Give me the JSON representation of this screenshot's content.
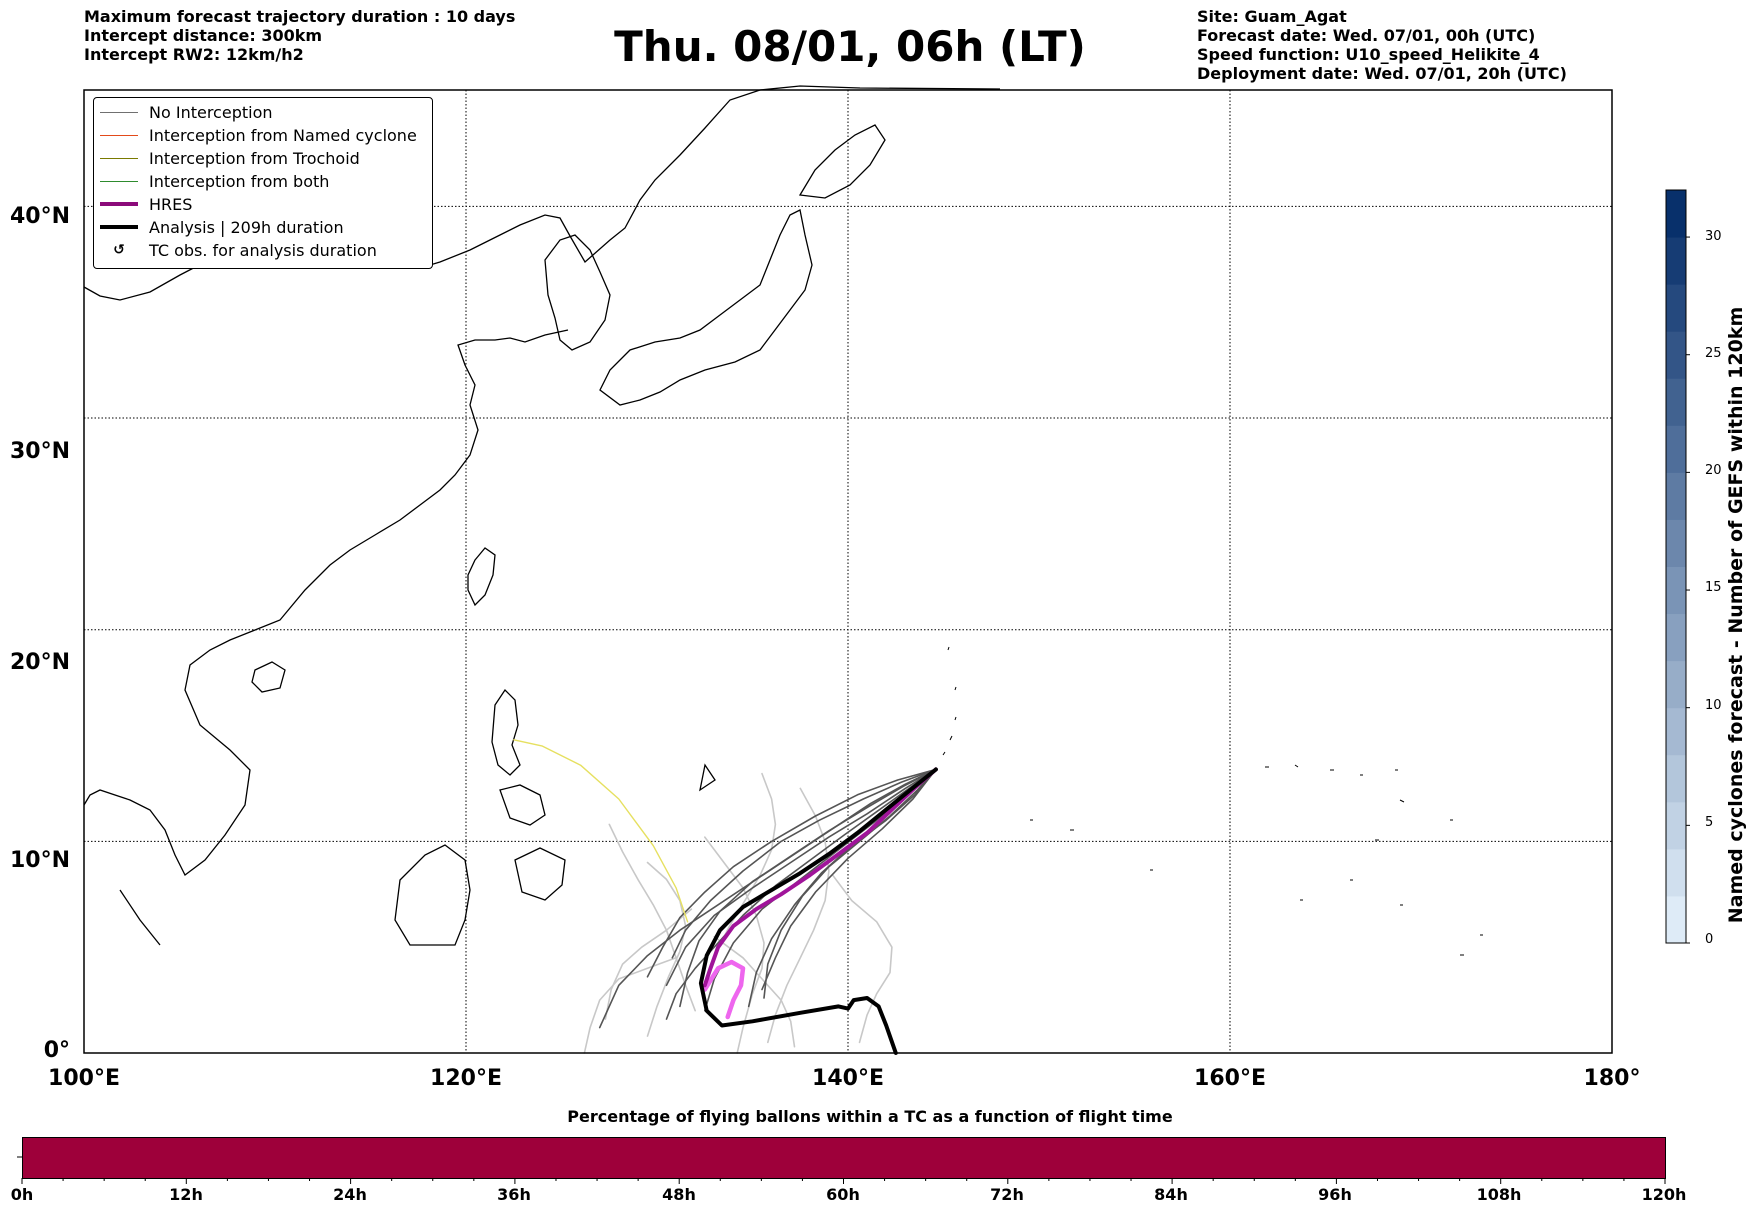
{
  "header": {
    "left_lines": [
      "Maximum forecast trajectory duration : 10 days",
      "Intercept distance: 300km",
      "Intercept RW2: 12km/h2"
    ],
    "title": "Thu. 08/01, 06h (LT)",
    "right_lines": [
      "Site: Guam_Agat",
      "Forecast date: Wed. 07/01, 00h (UTC)",
      "Speed function: U10_speed_Helikite_4",
      "Deployment date: Wed. 07/01, 20h (UTC)"
    ]
  },
  "map": {
    "lon_range": [
      100,
      180
    ],
    "lat_range": [
      0,
      45.5
    ],
    "grid": "dotted",
    "lon_ticks": [
      "100°E",
      "120°E",
      "140°E",
      "160°E",
      "180°"
    ],
    "lat_ticks": [
      "0°",
      "10°N",
      "20°N",
      "30°N",
      "40°N"
    ],
    "lon_tick_values": [
      100,
      120,
      140,
      160,
      180
    ],
    "lat_tick_values": [
      0,
      10,
      20,
      30,
      40
    ]
  },
  "legend": {
    "items": [
      {
        "label": "No Interception",
        "color": "#707070",
        "width": 1
      },
      {
        "label": "Interception from Named cyclone",
        "color": "#e34a1a",
        "width": 1
      },
      {
        "label": "Interception from Trochoid",
        "color": "#7a7a00",
        "width": 1
      },
      {
        "label": "Interception from both",
        "color": "#2e8b2e",
        "width": 1
      },
      {
        "label": "HRES",
        "color": "#8b0a7a",
        "width": 4
      },
      {
        "label": "Analysis | 209h duration",
        "color": "#000000",
        "width": 4
      },
      {
        "label": "TC obs. for analysis duration",
        "marker": "↺"
      }
    ]
  },
  "trajectories": {
    "launch_site": {
      "lon": 144.6,
      "lat": 13.4
    },
    "colors": {
      "gefs_dark": "#555555",
      "gefs_light": "#c8c8c8",
      "trochoid": "#e6e060",
      "hres": "#a0149a",
      "hres_tail": "#ee66ee",
      "analysis": "#000000"
    },
    "analysis": [
      [
        144.6,
        13.4
      ],
      [
        143.5,
        12.6
      ],
      [
        142,
        11.5
      ],
      [
        140.5,
        10.4
      ],
      [
        139,
        9.4
      ],
      [
        137.5,
        8.5
      ],
      [
        136,
        7.7
      ],
      [
        134.5,
        6.9
      ],
      [
        133.3,
        5.8
      ],
      [
        132.6,
        4.6
      ],
      [
        132.3,
        3.3
      ],
      [
        132.6,
        2.0
      ],
      [
        133.4,
        1.3
      ],
      [
        135,
        1.5
      ],
      [
        137.5,
        1.9
      ],
      [
        139.5,
        2.2
      ],
      [
        140,
        2.1
      ],
      [
        140.3,
        2.5
      ],
      [
        141,
        2.6
      ],
      [
        141.6,
        2.2
      ],
      [
        142,
        1.3
      ],
      [
        142.5,
        0
      ]
    ],
    "hres": [
      [
        144.6,
        13.4
      ],
      [
        143.7,
        12.7
      ],
      [
        142.3,
        11.5
      ],
      [
        141,
        10.4
      ],
      [
        139.5,
        9.4
      ],
      [
        138,
        8.4
      ],
      [
        136.5,
        7.5
      ],
      [
        135.2,
        6.8
      ],
      [
        134.0,
        6.0
      ],
      [
        133.2,
        5.0
      ],
      [
        132.8,
        4.0
      ],
      [
        132.5,
        3.2
      ]
    ],
    "hres_tail": [
      [
        132.5,
        3.0
      ],
      [
        133.2,
        4.0
      ],
      [
        133.9,
        4.3
      ],
      [
        134.5,
        4.0
      ],
      [
        134.4,
        3.2
      ],
      [
        134.0,
        2.5
      ],
      [
        133.7,
        1.7
      ]
    ],
    "trochoid": [
      [
        122.5,
        14.8
      ],
      [
        124,
        14.5
      ],
      [
        126,
        13.6
      ],
      [
        128,
        12.0
      ],
      [
        129.8,
        9.8
      ],
      [
        131,
        7.8
      ],
      [
        131.6,
        6.2
      ]
    ],
    "gefs_dark": [
      [
        [
          144.6,
          13.4
        ],
        [
          143,
          12.5
        ],
        [
          141,
          11.3
        ],
        [
          139,
          10.2
        ],
        [
          137,
          9.0
        ],
        [
          135,
          7.8
        ],
        [
          133,
          6.5
        ],
        [
          131.5,
          5.0
        ],
        [
          130.5,
          3.2
        ]
      ],
      [
        [
          144.6,
          13.4
        ],
        [
          143.2,
          12.3
        ],
        [
          141.5,
          11.0
        ],
        [
          139.5,
          9.6
        ],
        [
          137.5,
          8.2
        ],
        [
          135.5,
          6.8
        ],
        [
          134,
          5.2
        ],
        [
          133,
          3.5
        ],
        [
          132.5,
          2.0
        ]
      ],
      [
        [
          144.6,
          13.4
        ],
        [
          142.8,
          12.8
        ],
        [
          140.8,
          12.0
        ],
        [
          138.5,
          11.0
        ],
        [
          136.5,
          10.0
        ],
        [
          134.5,
          8.6
        ],
        [
          132.8,
          7.2
        ],
        [
          131.5,
          5.8
        ],
        [
          130.8,
          4.5
        ]
      ],
      [
        [
          144.6,
          13.4
        ],
        [
          143.4,
          12.0
        ],
        [
          141.8,
          10.6
        ],
        [
          140,
          9.2
        ],
        [
          138.3,
          7.6
        ],
        [
          137,
          6.0
        ],
        [
          136.2,
          4.5
        ],
        [
          135.5,
          3.0
        ]
      ],
      [
        [
          144.6,
          13.4
        ],
        [
          143,
          12.7
        ],
        [
          141.2,
          11.8
        ],
        [
          139.2,
          10.6
        ],
        [
          137.2,
          9.4
        ],
        [
          135.2,
          8.2
        ],
        [
          133.2,
          7.0
        ],
        [
          131.2,
          5.8
        ],
        [
          129.5,
          4.6
        ],
        [
          128,
          3.2
        ],
        [
          127,
          1.2
        ]
      ],
      [
        [
          144.6,
          13.4
        ],
        [
          143.6,
          12.4
        ],
        [
          142.2,
          11.2
        ],
        [
          140.6,
          10.0
        ],
        [
          139,
          8.8
        ],
        [
          137.6,
          7.4
        ],
        [
          136.5,
          5.8
        ],
        [
          135.8,
          4.2
        ],
        [
          135.6,
          2.6
        ]
      ],
      [
        [
          144.6,
          13.4
        ],
        [
          142.6,
          12.9
        ],
        [
          140.5,
          12.2
        ],
        [
          138.3,
          11.2
        ],
        [
          136,
          10.0
        ],
        [
          134,
          8.8
        ],
        [
          132.5,
          7.6
        ],
        [
          131.2,
          6.4
        ],
        [
          130.3,
          5.0
        ],
        [
          129.5,
          3.6
        ]
      ],
      [
        [
          144.6,
          13.4
        ],
        [
          143.2,
          12.5
        ],
        [
          141.5,
          11.4
        ],
        [
          139.8,
          10.3
        ],
        [
          138,
          9.1
        ],
        [
          136.2,
          7.9
        ],
        [
          134.5,
          6.5
        ],
        [
          133.2,
          5.2
        ],
        [
          132,
          4.0
        ],
        [
          131,
          2.8
        ],
        [
          130.5,
          1.6
        ]
      ],
      [
        [
          144.6,
          13.4
        ],
        [
          143.5,
          12.2
        ],
        [
          142,
          11.0
        ],
        [
          140.2,
          9.8
        ],
        [
          138.6,
          8.5
        ],
        [
          137.2,
          7.0
        ],
        [
          136,
          5.4
        ],
        [
          135.2,
          3.8
        ],
        [
          134.8,
          2.2
        ]
      ],
      [
        [
          144.6,
          13.4
        ],
        [
          142.9,
          12.6
        ],
        [
          141,
          11.6
        ],
        [
          139,
          10.5
        ],
        [
          137,
          9.3
        ],
        [
          135,
          8.1
        ],
        [
          133.3,
          6.7
        ],
        [
          132.2,
          5.3
        ],
        [
          131.6,
          3.8
        ],
        [
          131.2,
          2.2
        ]
      ]
    ],
    "gefs_light": [
      [
        [
          127.5,
          10.8
        ],
        [
          128.2,
          9.5
        ],
        [
          129,
          8.2
        ],
        [
          129.8,
          7.0
        ],
        [
          130.5,
          5.8
        ],
        [
          131,
          4.5
        ],
        [
          131.5,
          3.2
        ],
        [
          132,
          2.0
        ]
      ],
      [
        [
          132.5,
          10.2
        ],
        [
          133.5,
          9.0
        ],
        [
          134.5,
          7.8
        ],
        [
          135.2,
          6.5
        ],
        [
          135.6,
          5.2
        ],
        [
          135.5,
          4.0
        ],
        [
          135,
          2.8
        ],
        [
          134.5,
          1.2
        ],
        [
          134.2,
          0
        ]
      ],
      [
        [
          135.5,
          13.2
        ],
        [
          136,
          12.0
        ],
        [
          136.2,
          10.8
        ],
        [
          136,
          9.6
        ],
        [
          135.4,
          8.4
        ],
        [
          134.6,
          7.2
        ],
        [
          133.8,
          6.0
        ],
        [
          133,
          4.6
        ],
        [
          132.4,
          3.0
        ]
      ],
      [
        [
          129.5,
          9.0
        ],
        [
          130.5,
          8.2
        ],
        [
          131.2,
          7.2
        ],
        [
          131.5,
          6.0
        ],
        [
          131.2,
          4.8
        ],
        [
          130.6,
          3.6
        ],
        [
          130,
          2.2
        ],
        [
          129.5,
          0.8
        ]
      ],
      [
        [
          139.2,
          8.4
        ],
        [
          140.2,
          7.2
        ],
        [
          141.5,
          6.2
        ],
        [
          142.3,
          5.0
        ],
        [
          142.2,
          3.8
        ],
        [
          141.5,
          2.8
        ],
        [
          141,
          1.8
        ],
        [
          140.6,
          0.5
        ]
      ],
      [
        [
          131,
          4.5
        ],
        [
          129.5,
          4.0
        ],
        [
          128,
          3.5
        ],
        [
          127,
          2.5
        ],
        [
          126.5,
          1.2
        ],
        [
          126.2,
          0
        ]
      ],
      [
        [
          133,
          5.5
        ],
        [
          134.5,
          4.5
        ],
        [
          135.5,
          3.5
        ],
        [
          136.5,
          2.5
        ],
        [
          137,
          1.5
        ],
        [
          137.2,
          0.3
        ]
      ],
      [
        [
          137.5,
          12.5
        ],
        [
          138.3,
          11.2
        ],
        [
          138.8,
          10.0
        ],
        [
          139,
          8.6
        ],
        [
          138.8,
          7.2
        ],
        [
          138.2,
          5.8
        ],
        [
          137.5,
          4.5
        ],
        [
          136.8,
          3.2
        ],
        [
          136.2,
          1.8
        ],
        [
          135.8,
          0.5
        ]
      ],
      [
        [
          131.8,
          6.8
        ],
        [
          130.5,
          5.8
        ],
        [
          129.2,
          5.0
        ],
        [
          128.2,
          4.2
        ],
        [
          127.6,
          3.0
        ],
        [
          127.3,
          1.6
        ]
      ]
    ]
  },
  "colorbar": {
    "title": "Named cyclones forecast - Number of GEFS within 120km",
    "min": 0,
    "max": 32,
    "ticks": [
      "0",
      "5",
      "10",
      "15",
      "20",
      "25",
      "30"
    ],
    "tick_values": [
      0,
      5,
      10,
      15,
      20,
      25,
      30
    ],
    "color_low": "#deebf7",
    "color_high": "#08306b"
  },
  "percentage_bar": {
    "title": "Percentage of flying ballons within a TC as a function of flight time",
    "color": "#9e003a",
    "ticks": [
      "0h",
      "12h",
      "24h",
      "36h",
      "48h",
      "60h",
      "72h",
      "84h",
      "96h",
      "108h",
      "120h"
    ]
  }
}
